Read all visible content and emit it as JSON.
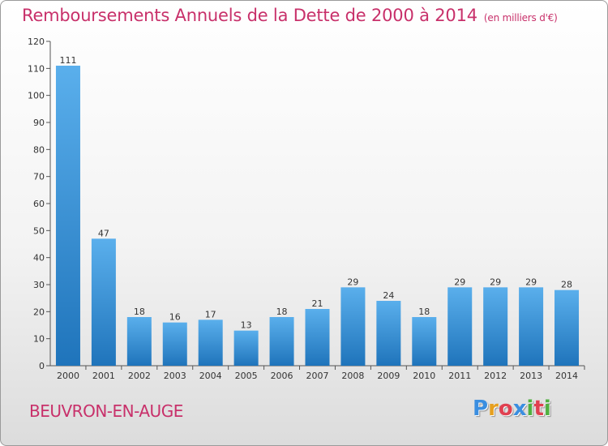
{
  "title": "Remboursements Annuels de la Dette de 2000 à 2014",
  "unit": "(en milliers d'€)",
  "place": "BEUVRON-EN-AUGE",
  "logo": {
    "letters": [
      "P",
      "r",
      "o",
      "x",
      "i",
      "t",
      "i"
    ],
    "colors": [
      "#3a8ee0",
      "#e6a020",
      "#e04050",
      "#3a8ee0",
      "#50b040",
      "#e04050",
      "#50b040"
    ]
  },
  "colors": {
    "bar_top": "#5aafec",
    "bar_bottom": "#1f74bb",
    "title": "#c8306a"
  },
  "chart_data": {
    "type": "bar",
    "categories": [
      "2000",
      "2001",
      "2002",
      "2003",
      "2004",
      "2005",
      "2006",
      "2007",
      "2008",
      "2009",
      "2010",
      "2011",
      "2012",
      "2013",
      "2014"
    ],
    "values": [
      111,
      47,
      18,
      16,
      17,
      13,
      18,
      21,
      29,
      24,
      18,
      29,
      29,
      29,
      28
    ],
    "ylim": [
      0,
      120
    ],
    "yticks": [
      0,
      10,
      20,
      30,
      40,
      50,
      60,
      70,
      80,
      90,
      100,
      110,
      120
    ],
    "grid": false,
    "data_labels": true
  }
}
